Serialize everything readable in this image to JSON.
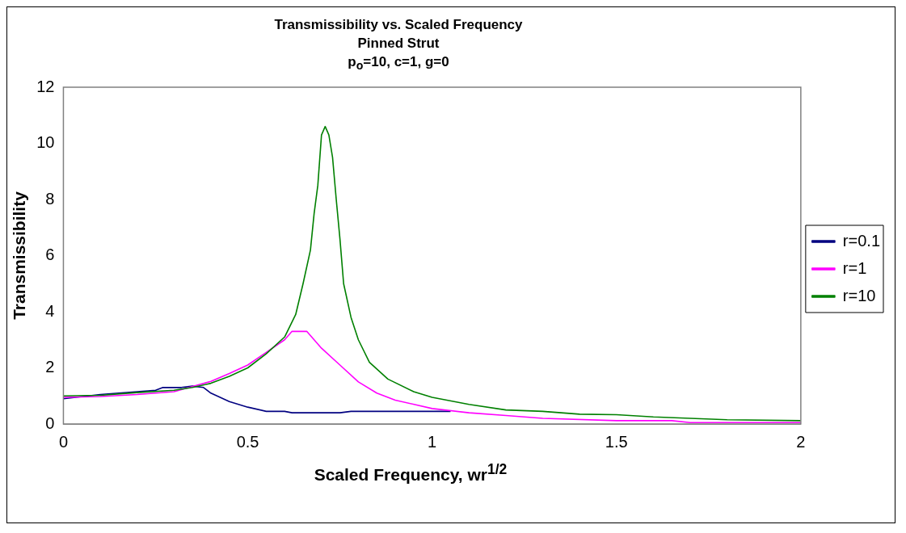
{
  "chart_data": {
    "type": "line",
    "title": "Transmissibility vs. Scaled Frequency",
    "subtitle": "Pinned Strut\np$_{o}$=10, c=1, g=0",
    "xlabel": "Scaled Frequency, wr$^{1/2}$",
    "ylabel": "Transmissibility",
    "xlim": [
      0,
      2
    ],
    "xticks": [
      0,
      0.5,
      1,
      1.5,
      2
    ],
    "ylim": [
      0,
      12
    ],
    "yticks": [
      0,
      2,
      4,
      6,
      8,
      10,
      12
    ],
    "grid": false,
    "legend": "right",
    "marker": "none",
    "line_style": "solid",
    "series": [
      {
        "name": "r=0.1",
        "color": "#000080",
        "x": [
          0,
          0.1,
          0.2,
          0.25,
          0.27,
          0.32,
          0.35,
          0.38,
          0.4,
          0.45,
          0.5,
          0.55,
          0.6,
          0.62,
          0.7,
          0.75,
          0.78,
          1.0,
          1.05
        ],
        "values": [
          0.9,
          1.05,
          1.15,
          1.2,
          1.3,
          1.3,
          1.35,
          1.3,
          1.1,
          0.8,
          0.6,
          0.45,
          0.45,
          0.4,
          0.4,
          0.4,
          0.45,
          0.45,
          0.45
        ]
      },
      {
        "name": "r=1",
        "color": "#ff00ff",
        "x": [
          0,
          0.1,
          0.2,
          0.3,
          0.4,
          0.45,
          0.5,
          0.55,
          0.6,
          0.62,
          0.66,
          0.7,
          0.75,
          0.8,
          0.85,
          0.9,
          1.0,
          1.1,
          1.2,
          1.3,
          1.5,
          1.65,
          1.7,
          2
        ],
        "values": [
          0.95,
          0.98,
          1.05,
          1.15,
          1.52,
          1.8,
          2.1,
          2.55,
          3.0,
          3.3,
          3.3,
          2.7,
          2.1,
          1.5,
          1.1,
          0.85,
          0.55,
          0.4,
          0.3,
          0.2,
          0.12,
          0.12,
          0.05,
          0.05
        ]
      },
      {
        "name": "r=10",
        "color": "#008000",
        "x": [
          0,
          0.1,
          0.2,
          0.3,
          0.35,
          0.4,
          0.45,
          0.5,
          0.55,
          0.6,
          0.63,
          0.65,
          0.67,
          0.68,
          0.69,
          0.7,
          0.71,
          0.72,
          0.73,
          0.74,
          0.75,
          0.76,
          0.78,
          0.8,
          0.83,
          0.88,
          0.95,
          1.0,
          1.1,
          1.2,
          1.3,
          1.4,
          1.5,
          1.6,
          1.8,
          2
        ],
        "values": [
          1.0,
          1.02,
          1.12,
          1.2,
          1.3,
          1.45,
          1.7,
          2.0,
          2.5,
          3.1,
          3.9,
          5.0,
          6.2,
          7.5,
          8.5,
          10.3,
          10.6,
          10.3,
          9.5,
          8.0,
          6.6,
          5.0,
          3.8,
          3.0,
          2.2,
          1.6,
          1.15,
          0.95,
          0.7,
          0.5,
          0.45,
          0.35,
          0.33,
          0.25,
          0.15,
          0.12
        ]
      }
    ]
  }
}
